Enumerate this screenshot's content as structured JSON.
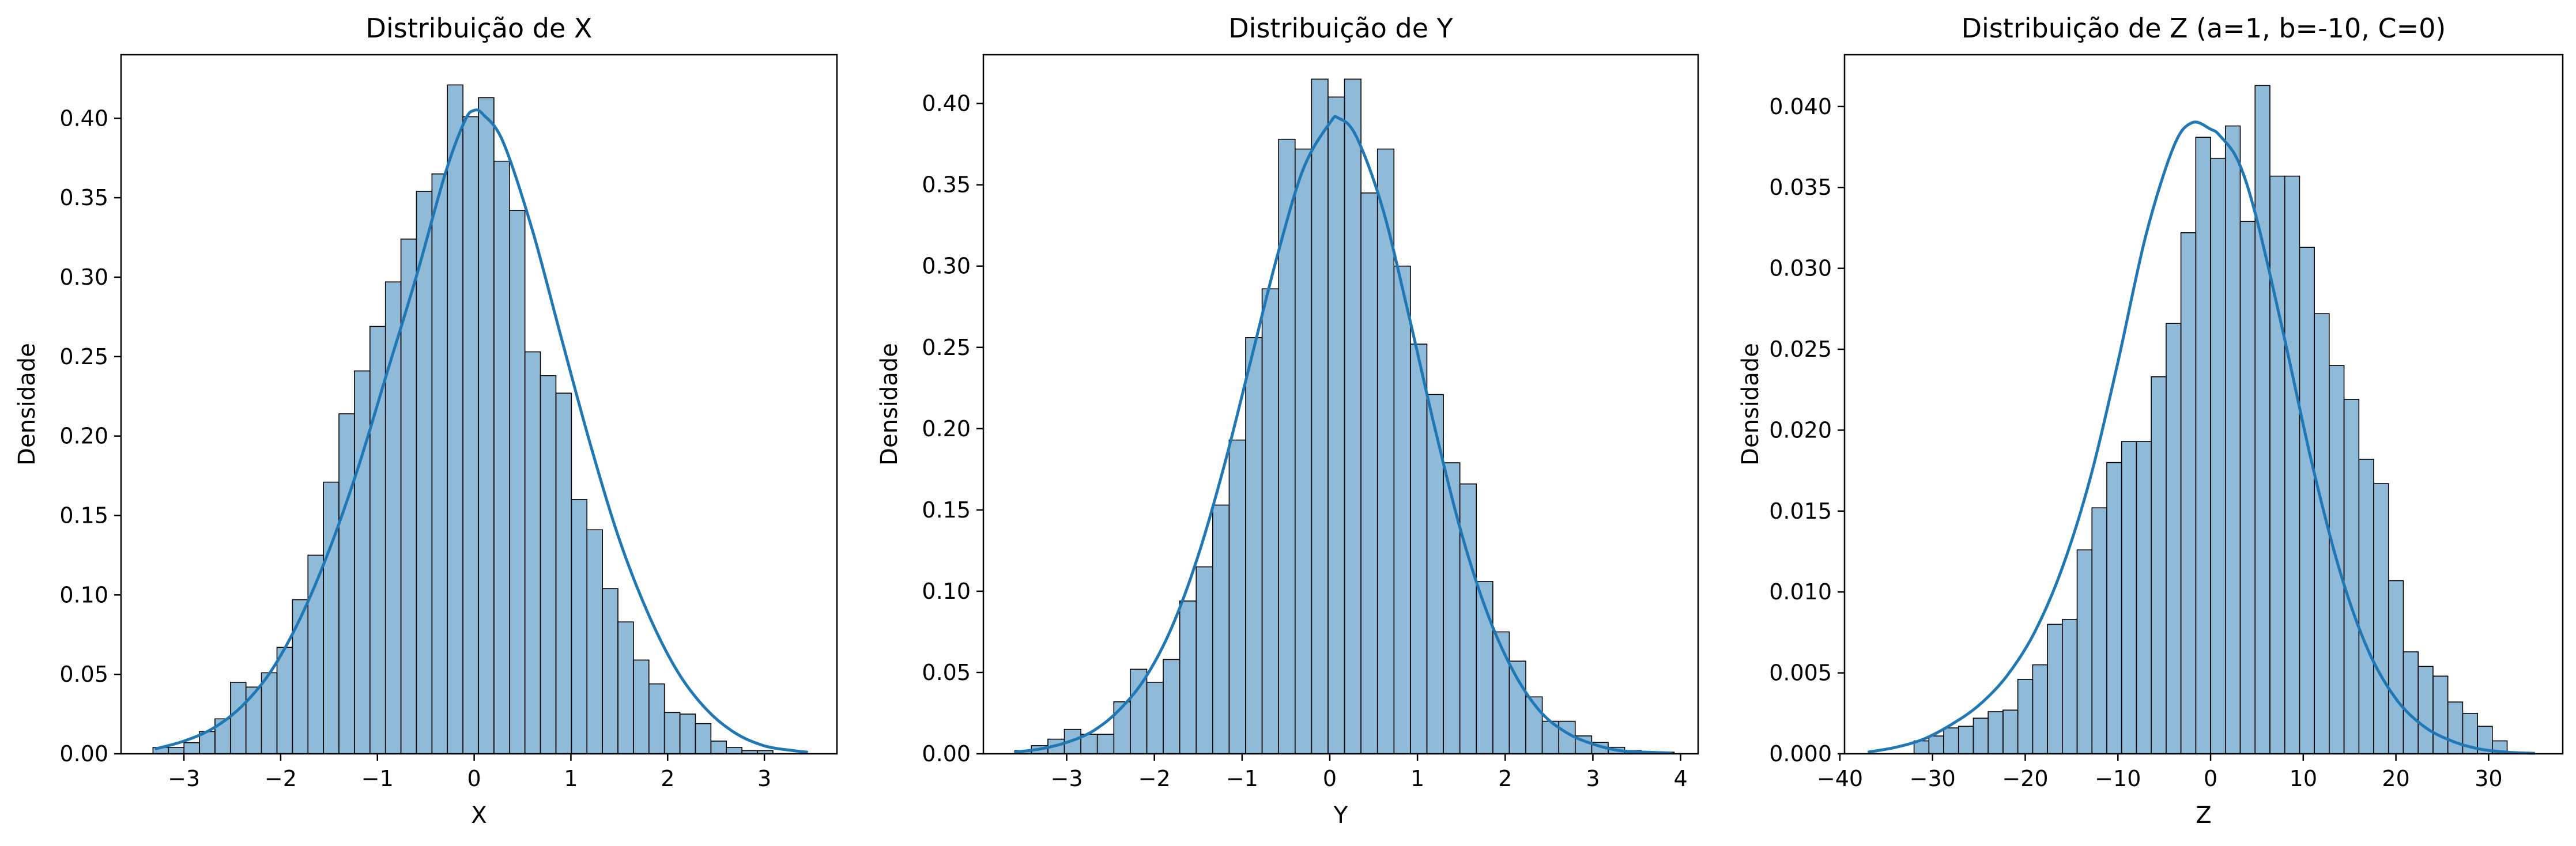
{
  "colors": {
    "bar_fill": "#1f77b4",
    "bar_fill_opacity": 0.5,
    "bar_edge": "#000000",
    "kde_line": "#1f77b4",
    "axes": "#000000",
    "background": "#ffffff"
  },
  "chart_data": [
    {
      "type": "bar",
      "subtype": "histogram_with_kde",
      "title": "Distribuição de X",
      "xlabel": "X",
      "ylabel": "Densidade",
      "xlim": [
        -3.65,
        3.75
      ],
      "ylim": [
        0,
        0.44
      ],
      "xticks": [
        -3,
        -2,
        -1,
        0,
        1,
        2,
        3
      ],
      "xtick_labels": [
        "−3",
        "−2",
        "−1",
        "0",
        "1",
        "2",
        "3"
      ],
      "yticks": [
        0,
        0.05,
        0.1,
        0.15,
        0.2,
        0.25,
        0.3,
        0.35,
        0.4
      ],
      "ytick_labels": [
        "0.00",
        "0.05",
        "0.10",
        "0.15",
        "0.20",
        "0.25",
        "0.30",
        "0.35",
        "0.40"
      ],
      "grid": false,
      "legend": "none",
      "bins": {
        "start": -3.32,
        "width": 0.1602,
        "values": [
          0.004,
          0.004,
          0.007,
          0.014,
          0.022,
          0.045,
          0.042,
          0.051,
          0.067,
          0.097,
          0.125,
          0.171,
          0.214,
          0.241,
          0.269,
          0.297,
          0.324,
          0.354,
          0.365,
          0.421,
          0.401,
          0.413,
          0.373,
          0.342,
          0.253,
          0.238,
          0.227,
          0.16,
          0.141,
          0.104,
          0.083,
          0.059,
          0.044,
          0.026,
          0.025,
          0.019,
          0.008,
          0.004,
          0.002,
          0.002
        ]
      },
      "kde": {
        "x": [
          -3.3,
          -3.0,
          -2.7,
          -2.4,
          -2.1,
          -1.8,
          -1.5,
          -1.2,
          -0.9,
          -0.6,
          -0.3,
          -0.1,
          0.0,
          0.1,
          0.3,
          0.6,
          0.9,
          1.2,
          1.5,
          1.8,
          2.1,
          2.4,
          2.7,
          3.0,
          3.3,
          3.45
        ],
        "y": [
          0.003,
          0.008,
          0.016,
          0.03,
          0.052,
          0.085,
          0.128,
          0.18,
          0.24,
          0.3,
          0.365,
          0.398,
          0.405,
          0.402,
          0.385,
          0.33,
          0.262,
          0.195,
          0.135,
          0.088,
          0.052,
          0.028,
          0.013,
          0.005,
          0.002,
          0.001
        ]
      }
    },
    {
      "type": "bar",
      "subtype": "histogram_with_kde",
      "title": "Distribuição de Y",
      "xlabel": "Y",
      "ylabel": "Densidade",
      "xlim": [
        -3.95,
        4.2
      ],
      "ylim": [
        0,
        0.43
      ],
      "xticks": [
        -3,
        -2,
        -1,
        0,
        1,
        2,
        3,
        4
      ],
      "xtick_labels": [
        "−3",
        "−2",
        "−1",
        "0",
        "1",
        "2",
        "3",
        "4"
      ],
      "yticks": [
        0,
        0.05,
        0.1,
        0.15,
        0.2,
        0.25,
        0.3,
        0.35,
        0.4
      ],
      "ytick_labels": [
        "0.00",
        "0.05",
        "0.10",
        "0.15",
        "0.20",
        "0.25",
        "0.30",
        "0.35",
        "0.40"
      ],
      "grid": false,
      "legend": "none",
      "bins": {
        "start": -3.59,
        "width": 0.1879,
        "values": [
          0.002,
          0.005,
          0.009,
          0.015,
          0.012,
          0.012,
          0.032,
          0.052,
          0.044,
          0.058,
          0.094,
          0.115,
          0.153,
          0.193,
          0.256,
          0.286,
          0.378,
          0.372,
          0.415,
          0.404,
          0.415,
          0.345,
          0.372,
          0.3,
          0.252,
          0.221,
          0.179,
          0.166,
          0.106,
          0.075,
          0.057,
          0.035,
          0.02,
          0.02,
          0.011,
          0.007,
          0.004,
          0.002,
          0.001,
          0.001
        ]
      },
      "kde": {
        "x": [
          -3.6,
          -3.3,
          -3.0,
          -2.7,
          -2.4,
          -2.1,
          -1.8,
          -1.5,
          -1.2,
          -0.9,
          -0.6,
          -0.3,
          0.0,
          0.1,
          0.3,
          0.6,
          0.9,
          1.2,
          1.5,
          1.8,
          2.1,
          2.4,
          2.7,
          3.0,
          3.3,
          3.6,
          3.9
        ],
        "y": [
          0.001,
          0.003,
          0.007,
          0.014,
          0.027,
          0.047,
          0.078,
          0.122,
          0.178,
          0.242,
          0.306,
          0.36,
          0.388,
          0.391,
          0.38,
          0.336,
          0.27,
          0.2,
          0.136,
          0.086,
          0.05,
          0.026,
          0.013,
          0.006,
          0.002,
          0.001,
          0.0005
        ]
      }
    },
    {
      "type": "bar",
      "subtype": "histogram_with_kde",
      "title": "Distribuição de Z (a=1, b=-10, C=0)",
      "xlabel": "Z",
      "ylabel": "Densidade",
      "xlim": [
        -39.5,
        38
      ],
      "ylim": [
        0,
        0.0432
      ],
      "xticks": [
        -40,
        -30,
        -20,
        -10,
        0,
        10,
        20,
        30
      ],
      "xtick_labels": [
        "−40",
        "−30",
        "−20",
        "−10",
        "0",
        "10",
        "20",
        "30"
      ],
      "yticks": [
        0,
        0.005,
        0.01,
        0.015,
        0.02,
        0.025,
        0.03,
        0.035,
        0.04
      ],
      "ytick_labels": [
        "0.000",
        "0.005",
        "0.010",
        "0.015",
        "0.020",
        "0.025",
        "0.030",
        "0.035",
        "0.040"
      ],
      "grid": false,
      "legend": "none",
      "bins": {
        "start": -32.0,
        "width": 1.6,
        "values": [
          0.0008,
          0.0011,
          0.0016,
          0.0017,
          0.0022,
          0.0026,
          0.0027,
          0.0046,
          0.0055,
          0.008,
          0.0083,
          0.0126,
          0.0152,
          0.018,
          0.0193,
          0.0193,
          0.0233,
          0.0266,
          0.0322,
          0.0381,
          0.0368,
          0.0388,
          0.0329,
          0.0413,
          0.0357,
          0.0357,
          0.0313,
          0.0272,
          0.024,
          0.0219,
          0.0182,
          0.0167,
          0.0107,
          0.0063,
          0.0054,
          0.0048,
          0.0032,
          0.0025,
          0.0017,
          0.0008
        ]
      },
      "kde": {
        "x": [
          -37,
          -34,
          -31,
          -28,
          -25,
          -22,
          -19,
          -16,
          -13,
          -10,
          -7,
          -4,
          -2,
          0,
          1,
          3,
          5,
          8,
          11,
          14,
          17,
          20,
          23,
          26,
          29,
          32,
          35
        ],
        "y": [
          0.0001,
          0.0004,
          0.0009,
          0.0018,
          0.003,
          0.0048,
          0.0075,
          0.0115,
          0.017,
          0.0242,
          0.032,
          0.0375,
          0.039,
          0.0386,
          0.0382,
          0.0366,
          0.033,
          0.0256,
          0.0178,
          0.0112,
          0.0064,
          0.0034,
          0.0017,
          0.0008,
          0.0003,
          0.0001,
          3e-05
        ]
      }
    }
  ]
}
